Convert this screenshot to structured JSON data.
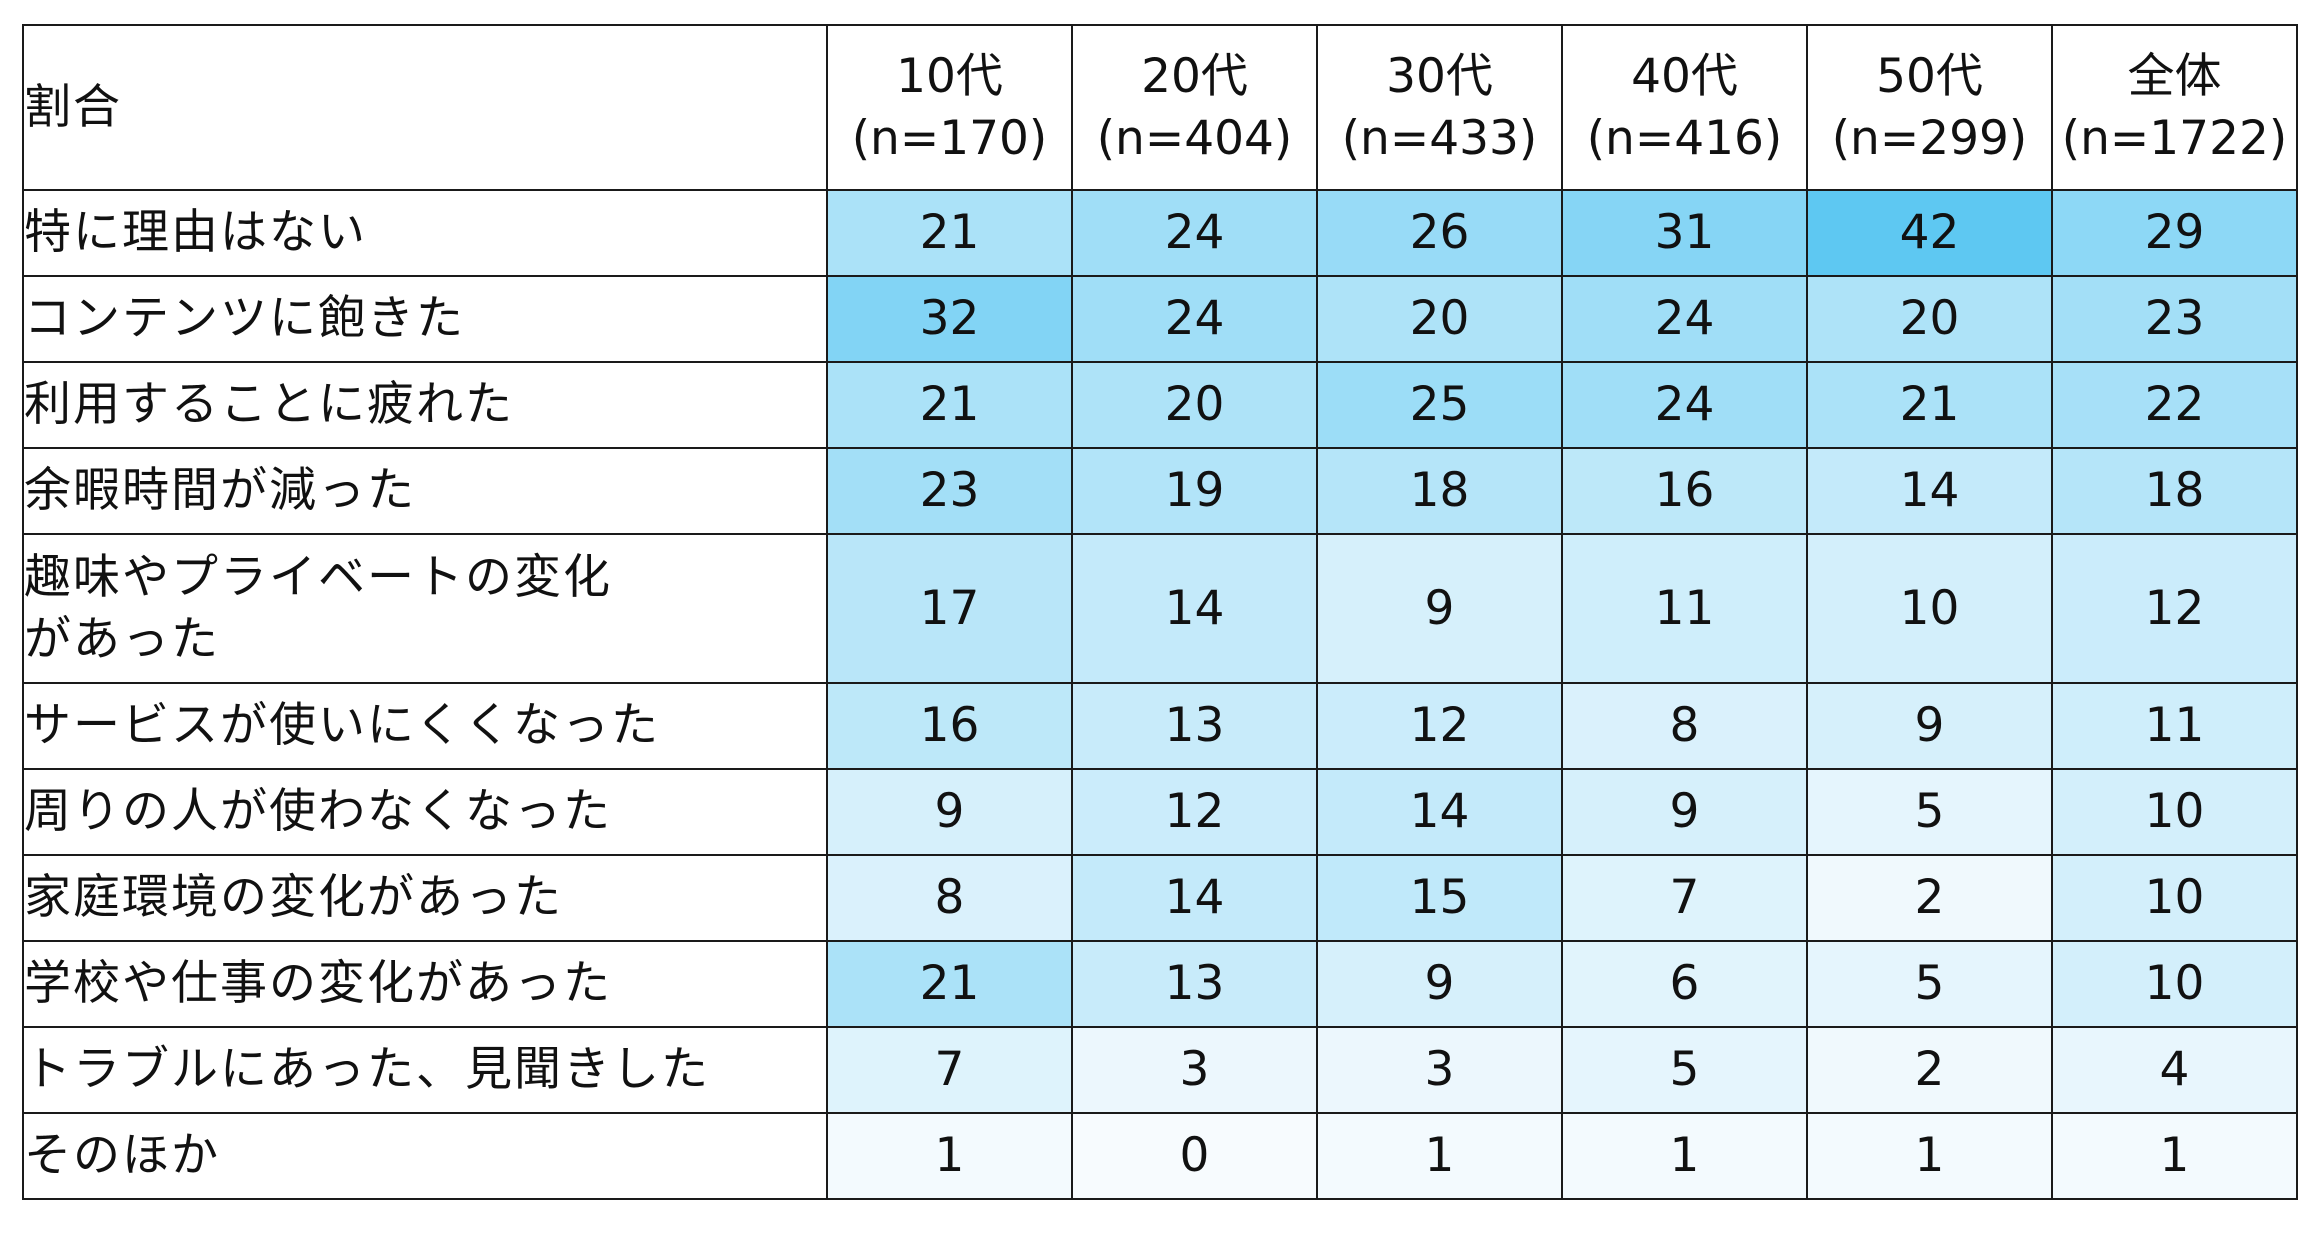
{
  "chart_data": {
    "type": "heatmap",
    "corner_label": "割合",
    "columns": [
      {
        "name": "10代",
        "n": "(n=170)"
      },
      {
        "name": "20代",
        "n": "(n=404)"
      },
      {
        "name": "30代",
        "n": "(n=433)"
      },
      {
        "name": "40代",
        "n": "(n=416)"
      },
      {
        "name": "50代",
        "n": "(n=299)"
      },
      {
        "name": "全体",
        "n": "(n=1722)"
      }
    ],
    "rows": [
      {
        "label": "特に理由はない",
        "values": [
          21,
          24,
          26,
          31,
          42,
          29
        ]
      },
      {
        "label": "コンテンツに飽きた",
        "values": [
          32,
          24,
          20,
          24,
          20,
          23
        ]
      },
      {
        "label": "利用することに疲れた",
        "values": [
          21,
          20,
          25,
          24,
          21,
          22
        ]
      },
      {
        "label": "余暇時間が減った",
        "values": [
          23,
          19,
          18,
          16,
          14,
          18
        ]
      },
      {
        "label": "趣味やプライベートの変化\nがあった",
        "values": [
          17,
          14,
          9,
          11,
          10,
          12
        ]
      },
      {
        "label": "サービスが使いにくくなった",
        "values": [
          16,
          13,
          12,
          8,
          9,
          11
        ]
      },
      {
        "label": "周りの人が使わなくなった",
        "values": [
          9,
          12,
          14,
          9,
          5,
          10
        ]
      },
      {
        "label": "家庭環境の変化があった",
        "values": [
          8,
          14,
          15,
          7,
          2,
          10
        ]
      },
      {
        "label": "学校や仕事の変化があった",
        "values": [
          21,
          13,
          9,
          6,
          5,
          10
        ]
      },
      {
        "label": "トラブルにあった、見聞きした",
        "values": [
          7,
          3,
          3,
          5,
          2,
          4
        ]
      },
      {
        "label": "そのほか",
        "values": [
          1,
          0,
          1,
          1,
          1,
          1
        ]
      }
    ],
    "color_scale": {
      "low": "#f7fbfe",
      "high": "#5ec8f2",
      "min": 0,
      "max": 42
    }
  }
}
